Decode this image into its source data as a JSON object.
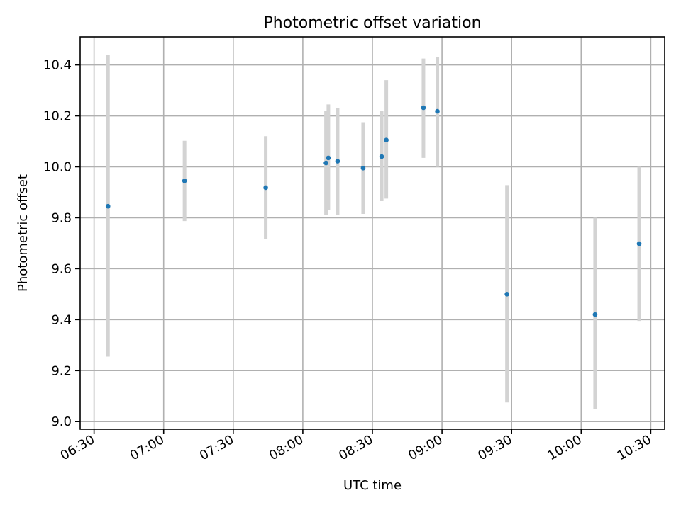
{
  "chart_data": {
    "type": "scatter",
    "title": "Photometric offset variation",
    "xlabel": "UTC time",
    "ylabel": "Photometric offset",
    "x_ticks": [
      "06:30",
      "07:00",
      "07:30",
      "08:00",
      "08:30",
      "09:00",
      "09:30",
      "10:00",
      "10:30"
    ],
    "y_ticks": [
      "9.0",
      "9.2",
      "9.4",
      "9.6",
      "9.8",
      "10.0",
      "10.2",
      "10.4"
    ],
    "xlim": [
      "06:24",
      "10:36"
    ],
    "ylim": [
      8.97,
      10.51
    ],
    "grid": true,
    "colors": {
      "point": "#1f77b4",
      "errorbar": "#d3d3d3"
    },
    "series": [
      {
        "x": [
          "06:36",
          "07:09",
          "07:44",
          "08:10",
          "08:11",
          "08:15",
          "08:26",
          "08:34",
          "08:36",
          "08:52",
          "08:58",
          "09:28",
          "10:06",
          "10:25"
        ],
        "y": [
          9.845,
          9.945,
          9.918,
          10.015,
          10.035,
          10.022,
          9.995,
          10.04,
          10.105,
          10.232,
          10.218,
          9.5,
          9.42,
          9.698
        ],
        "yerr_low": [
          9.255,
          9.787,
          9.715,
          9.81,
          9.83,
          9.812,
          9.815,
          9.865,
          9.875,
          10.035,
          10.0,
          9.075,
          9.048,
          9.395
        ],
        "yerr_high": [
          10.44,
          10.102,
          10.12,
          10.22,
          10.245,
          10.232,
          10.175,
          10.22,
          10.34,
          10.425,
          10.432,
          9.928,
          9.8,
          10.0
        ]
      }
    ]
  }
}
